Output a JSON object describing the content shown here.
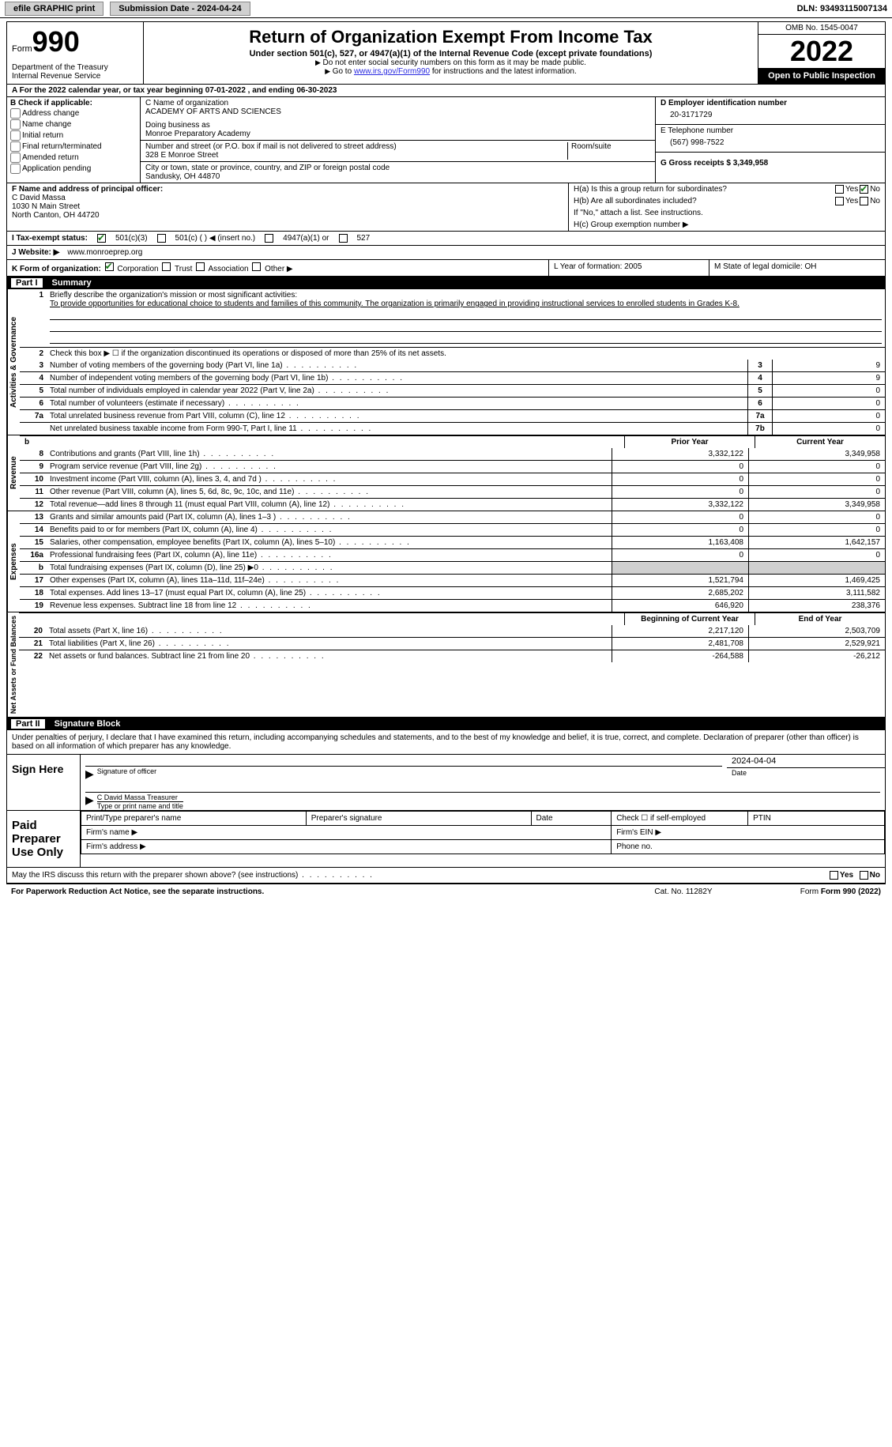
{
  "topbar": {
    "efile_label": "efile GRAPHIC print",
    "submission_label": "Submission Date - 2024-04-24",
    "dln_label": "DLN: 93493115007134"
  },
  "header": {
    "form_prefix": "Form",
    "form_number": "990",
    "dept": "Department of the Treasury\nInternal Revenue Service",
    "title": "Return of Organization Exempt From Income Tax",
    "subtitle": "Under section 501(c), 527, or 4947(a)(1) of the Internal Revenue Code (except private foundations)",
    "note1": "Do not enter social security numbers on this form as it may be made public.",
    "note2_pre": "Go to ",
    "note2_link": "www.irs.gov/Form990",
    "note2_post": " for instructions and the latest information.",
    "omb": "OMB No. 1545-0047",
    "year": "2022",
    "open_pub": "Open to Public Inspection"
  },
  "row_a": "A For the 2022 calendar year, or tax year beginning 07-01-2022   , and ending 06-30-2023",
  "section_b": {
    "label": "B Check if applicable:",
    "items": [
      "Address change",
      "Name change",
      "Initial return",
      "Final return/terminated",
      "Amended return",
      "Application pending"
    ]
  },
  "section_c": {
    "name_label": "C Name of organization",
    "name": "ACADEMY OF ARTS AND SCIENCES",
    "dba_label": "Doing business as",
    "dba": "Monroe Preparatory Academy",
    "addr_label": "Number and street (or P.O. box if mail is not delivered to street address)",
    "addr": "328 E Monroe Street",
    "room_label": "Room/suite",
    "city_label": "City or town, state or province, country, and ZIP or foreign postal code",
    "city": "Sandusky, OH  44870"
  },
  "section_d": {
    "ein_label": "D Employer identification number",
    "ein": "20-3171729",
    "tel_label": "E Telephone number",
    "tel": "(567) 998-7522",
    "gross_label": "G Gross receipts $ 3,349,958"
  },
  "section_f": {
    "label": "F  Name and address of principal officer:",
    "name": "C David Massa",
    "addr1": "1030 N Main Street",
    "addr2": "North Canton, OH  44720"
  },
  "section_h": {
    "ha": "H(a)  Is this a group return for subordinates?",
    "hb": "H(b)  Are all subordinates included?",
    "hb_note": "If \"No,\" attach a list. See instructions.",
    "hc": "H(c)  Group exemption number ▶",
    "yes": "Yes",
    "no": "No"
  },
  "row_i": {
    "label": "I  Tax-exempt status:",
    "opt1": "501(c)(3)",
    "opt2": "501(c) (  ) ◀ (insert no.)",
    "opt3": "4947(a)(1) or",
    "opt4": "527"
  },
  "row_j": {
    "label": "J  Website: ▶",
    "val": "www.monroeprep.org"
  },
  "row_k": {
    "label": "K Form of organization:",
    "corp": "Corporation",
    "trust": "Trust",
    "assoc": "Association",
    "other": "Other ▶"
  },
  "row_l": {
    "label": "L Year of formation: 2005"
  },
  "row_m": {
    "label": "M State of legal domicile: OH"
  },
  "part1": {
    "num": "Part I",
    "title": "Summary"
  },
  "summary": {
    "q1_label": "Briefly describe the organization's mission or most significant activities:",
    "q1_text": "To provide opportunities for educational choice to students and families of this community. The organization is primarily engaged in providing instructional services to enrolled students in Grades K-8.",
    "q2": "Check this box ▶ ☐ if the organization discontinued its operations or disposed of more than 25% of its net assets.",
    "lines_gov": [
      {
        "n": "3",
        "t": "Number of voting members of the governing body (Part VI, line 1a)",
        "box": "3",
        "v": "9"
      },
      {
        "n": "4",
        "t": "Number of independent voting members of the governing body (Part VI, line 1b)",
        "box": "4",
        "v": "9"
      },
      {
        "n": "5",
        "t": "Total number of individuals employed in calendar year 2022 (Part V, line 2a)",
        "box": "5",
        "v": "0"
      },
      {
        "n": "6",
        "t": "Total number of volunteers (estimate if necessary)",
        "box": "6",
        "v": "0"
      },
      {
        "n": "7a",
        "t": "Total unrelated business revenue from Part VIII, column (C), line 12",
        "box": "7a",
        "v": "0"
      },
      {
        "n": "",
        "t": "Net unrelated business taxable income from Form 990-T, Part I, line 11",
        "box": "7b",
        "v": "0"
      }
    ],
    "col_prior": "Prior Year",
    "col_curr": "Current Year",
    "lines_rev": [
      {
        "n": "8",
        "t": "Contributions and grants (Part VIII, line 1h)",
        "p": "3,332,122",
        "c": "3,349,958"
      },
      {
        "n": "9",
        "t": "Program service revenue (Part VIII, line 2g)",
        "p": "0",
        "c": "0"
      },
      {
        "n": "10",
        "t": "Investment income (Part VIII, column (A), lines 3, 4, and 7d )",
        "p": "0",
        "c": "0"
      },
      {
        "n": "11",
        "t": "Other revenue (Part VIII, column (A), lines 5, 6d, 8c, 9c, 10c, and 11e)",
        "p": "0",
        "c": "0"
      },
      {
        "n": "12",
        "t": "Total revenue—add lines 8 through 11 (must equal Part VIII, column (A), line 12)",
        "p": "3,332,122",
        "c": "3,349,958"
      }
    ],
    "lines_exp": [
      {
        "n": "13",
        "t": "Grants and similar amounts paid (Part IX, column (A), lines 1–3 )",
        "p": "0",
        "c": "0"
      },
      {
        "n": "14",
        "t": "Benefits paid to or for members (Part IX, column (A), line 4)",
        "p": "0",
        "c": "0"
      },
      {
        "n": "15",
        "t": "Salaries, other compensation, employee benefits (Part IX, column (A), lines 5–10)",
        "p": "1,163,408",
        "c": "1,642,157"
      },
      {
        "n": "16a",
        "t": "Professional fundraising fees (Part IX, column (A), line 11e)",
        "p": "0",
        "c": "0"
      },
      {
        "n": "b",
        "t": "Total fundraising expenses (Part IX, column (D), line 25) ▶0",
        "p": "shade",
        "c": "shade"
      },
      {
        "n": "17",
        "t": "Other expenses (Part IX, column (A), lines 11a–11d, 11f–24e)",
        "p": "1,521,794",
        "c": "1,469,425"
      },
      {
        "n": "18",
        "t": "Total expenses. Add lines 13–17 (must equal Part IX, column (A), line 25)",
        "p": "2,685,202",
        "c": "3,111,582"
      },
      {
        "n": "19",
        "t": "Revenue less expenses. Subtract line 18 from line 12",
        "p": "646,920",
        "c": "238,376"
      }
    ],
    "col_beg": "Beginning of Current Year",
    "col_end": "End of Year",
    "lines_net": [
      {
        "n": "20",
        "t": "Total assets (Part X, line 16)",
        "p": "2,217,120",
        "c": "2,503,709"
      },
      {
        "n": "21",
        "t": "Total liabilities (Part X, line 26)",
        "p": "2,481,708",
        "c": "2,529,921"
      },
      {
        "n": "22",
        "t": "Net assets or fund balances. Subtract line 21 from line 20",
        "p": "-264,588",
        "c": "-26,212"
      }
    ],
    "vlabels": {
      "gov": "Activities & Governance",
      "rev": "Revenue",
      "exp": "Expenses",
      "net": "Net Assets or Fund Balances"
    }
  },
  "part2": {
    "num": "Part II",
    "title": "Signature Block"
  },
  "sig": {
    "declaration": "Under penalties of perjury, I declare that I have examined this return, including accompanying schedules and statements, and to the best of my knowledge and belief, it is true, correct, and complete. Declaration of preparer (other than officer) is based on all information of which preparer has any knowledge.",
    "sign_here": "Sign Here",
    "sig_officer": "Signature of officer",
    "date": "2024-04-04",
    "date_lbl": "Date",
    "name": "C David Massa  Treasurer",
    "name_lbl": "Type or print name and title",
    "paid": "Paid Preparer Use Only",
    "h1": "Print/Type preparer's name",
    "h2": "Preparer's signature",
    "h3": "Date",
    "h4": "Check ☐ if self-employed",
    "h5": "PTIN",
    "firm_name": "Firm's name   ▶",
    "firm_ein": "Firm's EIN ▶",
    "firm_addr": "Firm's address ▶",
    "phone": "Phone no.",
    "may": "May the IRS discuss this return with the preparer shown above? (see instructions)"
  },
  "footer": {
    "l": "For Paperwork Reduction Act Notice, see the separate instructions.",
    "m": "Cat. No. 11282Y",
    "r": "Form 990 (2022)"
  }
}
